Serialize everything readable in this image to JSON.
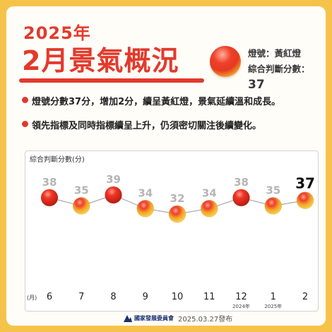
{
  "header": {
    "year_title": "2025年",
    "main_title": "2月景氣概況",
    "light_label": "燈號：黃紅燈",
    "score_label": "綜合判斷分數：",
    "score_value": "37"
  },
  "bullets": [
    "燈號分數37分，增加2分，續呈黃紅燈，景氣延續溫和成長。",
    "領先指標及同時指標續呈上升，仍須密切關注後續變化。"
  ],
  "footer": {
    "org_name": "國家發展委員會",
    "date": "2025.03.27發布"
  },
  "colors": {
    "brand_red": "#e23a2c",
    "yellow_red": "#f29b2c",
    "background": "#f6c34a"
  },
  "chart_data": {
    "type": "scatter",
    "title": "綜合判斷分數(分)",
    "x_unit": "(月)",
    "categories": [
      "6",
      "7",
      "8",
      "9",
      "10",
      "11",
      "12",
      "1",
      "2"
    ],
    "year_notes": [
      "",
      "",
      "",
      "",
      "",
      "",
      "2024年",
      "2025年",
      ""
    ],
    "values": [
      38,
      35,
      39,
      34,
      32,
      34,
      38,
      35,
      37
    ],
    "light_signals": [
      "red",
      "yellow-red",
      "red",
      "yellow-red",
      "yellow-red",
      "yellow-red",
      "red",
      "yellow-red",
      "yellow-red"
    ],
    "ylim": [
      30,
      41
    ],
    "grid": false
  }
}
